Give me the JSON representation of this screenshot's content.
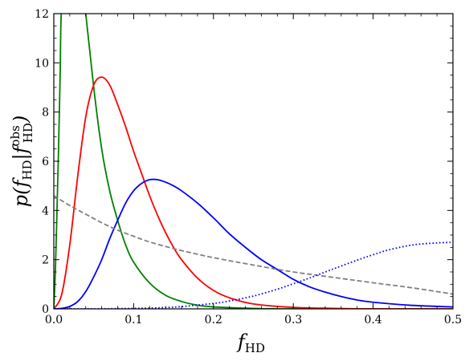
{
  "chart_data": {
    "type": "line",
    "xlabel": "f",
    "xlabel_sub": "HD",
    "ylabel": {
      "prefix": "p(",
      "f1": "f",
      "f1_sub": "HD",
      "bar": "|",
      "f2": "f",
      "f2_sub": "HD",
      "f2_sup": "obs",
      "suffix": ")"
    },
    "xlim": [
      0.0,
      0.5
    ],
    "ylim": [
      0,
      12
    ],
    "xticks": [
      0.0,
      0.1,
      0.2,
      0.3,
      0.4,
      0.5
    ],
    "xtick_labels": [
      "0.0",
      "0.1",
      "0.2",
      "0.3",
      "0.4",
      "0.5"
    ],
    "yticks": [
      0,
      2,
      4,
      6,
      8,
      10,
      12
    ],
    "ytick_labels": [
      "0",
      "2",
      "4",
      "6",
      "8",
      "10",
      "12"
    ],
    "grid": false,
    "series": [
      {
        "color": "#008000",
        "style": "solid",
        "x": [
          0.0,
          0.002,
          0.004,
          0.006,
          0.008,
          0.01,
          0.02,
          0.03,
          0.04,
          0.05,
          0.06,
          0.07,
          0.08,
          0.09,
          0.1,
          0.12,
          0.14,
          0.16,
          0.18,
          0.2,
          0.25,
          0.3,
          0.5
        ],
        "y": [
          0.0,
          1.6,
          4.0,
          6.6,
          9.6,
          12.5,
          16.5,
          14.5,
          12.0,
          9.0,
          6.5,
          4.8,
          3.6,
          2.6,
          1.9,
          1.05,
          0.55,
          0.3,
          0.15,
          0.08,
          0.02,
          0.0,
          0.0
        ]
      },
      {
        "color": "#ff0000",
        "style": "solid",
        "x": [
          0.0,
          0.01,
          0.02,
          0.03,
          0.04,
          0.05,
          0.06,
          0.07,
          0.08,
          0.09,
          0.1,
          0.11,
          0.12,
          0.13,
          0.14,
          0.15,
          0.16,
          0.18,
          0.2,
          0.22,
          0.25,
          0.3,
          0.35,
          0.4,
          0.5
        ],
        "y": [
          0.0,
          0.6,
          2.6,
          5.4,
          7.8,
          9.1,
          9.42,
          9.1,
          8.3,
          7.4,
          6.4,
          5.5,
          4.6,
          3.8,
          3.1,
          2.5,
          2.0,
          1.25,
          0.75,
          0.45,
          0.2,
          0.06,
          0.02,
          0.0,
          0.0
        ]
      },
      {
        "color": "#0000ff",
        "style": "solid",
        "x": [
          0.0,
          0.01,
          0.02,
          0.03,
          0.04,
          0.05,
          0.06,
          0.07,
          0.08,
          0.09,
          0.1,
          0.11,
          0.12,
          0.13,
          0.14,
          0.15,
          0.16,
          0.18,
          0.2,
          0.22,
          0.24,
          0.26,
          0.28,
          0.3,
          0.32,
          0.34,
          0.36,
          0.38,
          0.4,
          0.45,
          0.5
        ],
        "y": [
          0.0,
          0.02,
          0.1,
          0.3,
          0.7,
          1.3,
          2.0,
          2.85,
          3.6,
          4.3,
          4.8,
          5.1,
          5.25,
          5.25,
          5.15,
          5.0,
          4.8,
          4.3,
          3.7,
          3.05,
          2.5,
          2.0,
          1.6,
          1.2,
          0.9,
          0.68,
          0.5,
          0.36,
          0.27,
          0.14,
          0.08
        ]
      },
      {
        "color": "#808080",
        "style": "dashed",
        "x": [
          0.0,
          0.02,
          0.04,
          0.06,
          0.08,
          0.1,
          0.12,
          0.15,
          0.18,
          0.2,
          0.25,
          0.3,
          0.35,
          0.4,
          0.45,
          0.5
        ],
        "y": [
          4.6,
          4.2,
          3.85,
          3.5,
          3.2,
          2.95,
          2.72,
          2.45,
          2.22,
          2.08,
          1.78,
          1.5,
          1.28,
          1.06,
          0.85,
          0.6
        ]
      },
      {
        "color": "#0000ff",
        "style": "dotted",
        "x": [
          0.0,
          0.05,
          0.1,
          0.15,
          0.2,
          0.22,
          0.25,
          0.28,
          0.3,
          0.32,
          0.35,
          0.38,
          0.4,
          0.42,
          0.45,
          0.48,
          0.5
        ],
        "y": [
          0.0,
          0.0,
          0.02,
          0.07,
          0.22,
          0.32,
          0.52,
          0.8,
          1.02,
          1.25,
          1.62,
          1.98,
          2.2,
          2.4,
          2.6,
          2.68,
          2.7
        ]
      }
    ]
  }
}
